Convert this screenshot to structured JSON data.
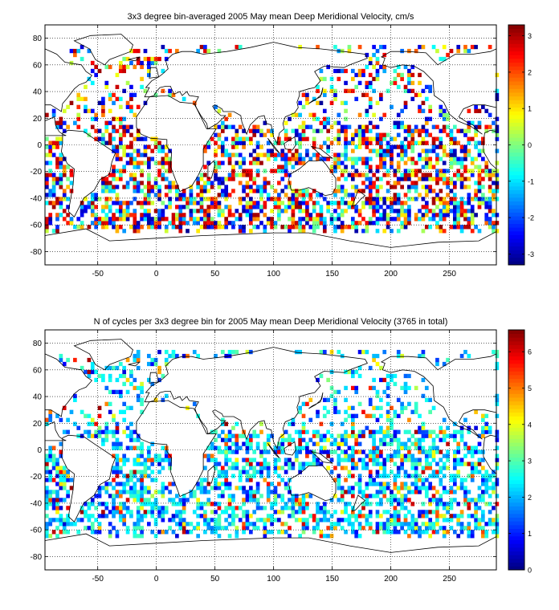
{
  "chart_data": [
    {
      "type": "heatmap",
      "title": "3x3 degree bin-averaged 2005 May mean Deep Meridional Velocity, cm/s",
      "xlim": [
        -95,
        290
      ],
      "ylim": [
        -90,
        90
      ],
      "xticks": [
        -50,
        0,
        50,
        100,
        150,
        200,
        250
      ],
      "yticks": [
        -80,
        -60,
        -40,
        -20,
        0,
        20,
        40,
        60,
        80
      ],
      "grid": "dotted",
      "colorbar": {
        "placement": "right",
        "colormap": "jet",
        "clim": [
          -3.3,
          3.3
        ],
        "ticks": [
          -3,
          -2,
          -1,
          0,
          1,
          2,
          3
        ]
      },
      "bin_size_deg": 3,
      "seed": 7
    },
    {
      "type": "heatmap",
      "title": "N of cycles per 3x3 degree bin for 2005 May mean Deep Meridional Velocity (3765 in total)",
      "xlim": [
        -95,
        290
      ],
      "ylim": [
        -90,
        90
      ],
      "xticks": [
        -50,
        0,
        50,
        100,
        150,
        200,
        250
      ],
      "yticks": [
        -80,
        -60,
        -40,
        -20,
        0,
        20,
        40,
        60,
        80
      ],
      "grid": "dotted",
      "colorbar": {
        "placement": "right",
        "colormap": "jet",
        "clim": [
          0,
          6.6
        ],
        "ticks": [
          0,
          1,
          2,
          3,
          4,
          5,
          6
        ]
      },
      "bin_size_deg": 3,
      "seed": 11
    }
  ],
  "colors": {
    "frame": "#000000",
    "coast": "#000000",
    "grid": "#000000",
    "background": "#ffffff"
  }
}
